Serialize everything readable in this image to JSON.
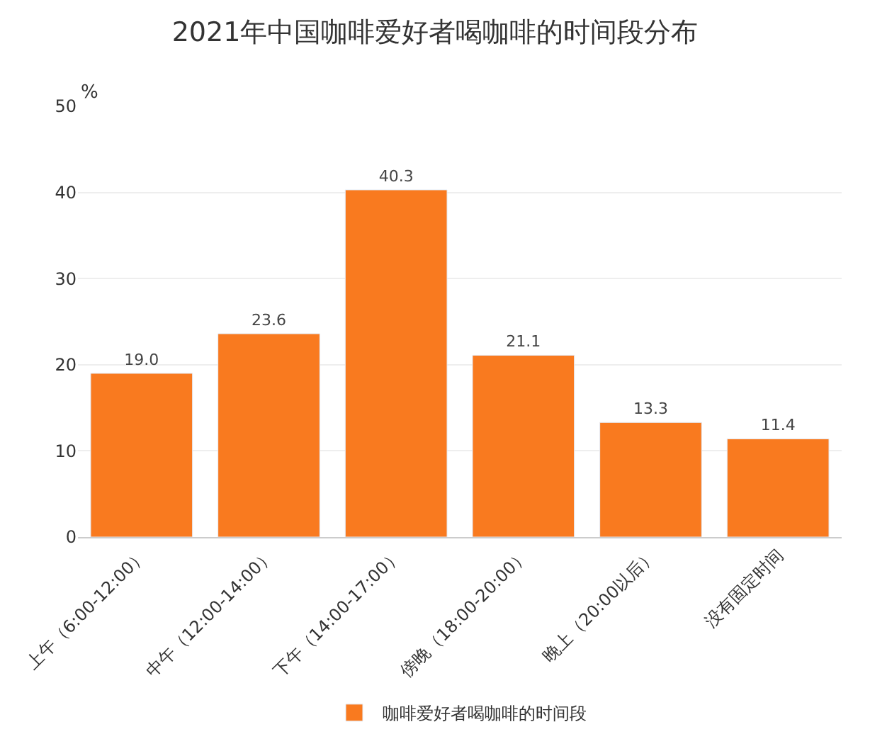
{
  "chart_data": {
    "type": "bar",
    "title": "2021年中国咖啡爱好者喝咖啡的时间段分布",
    "ylabel": "%",
    "categories": [
      "上午（6:00-12:00）",
      "中午（12:00-14:00）",
      "下午（14:00-17:00）",
      "傍晚（18:00-20:00）",
      "晚上（20:00以后）",
      "没有固定时间"
    ],
    "series": [
      {
        "name": "咖啡爱好者喝咖啡的时间段",
        "color": "#f97a1f",
        "values": [
          19.0,
          23.6,
          40.3,
          21.1,
          13.3,
          11.4
        ],
        "value_labels": [
          "19.0",
          "23.6",
          "40.3",
          "21.1",
          "13.3",
          "11.4"
        ]
      }
    ],
    "ylim": [
      0,
      50
    ],
    "yticks": [
      0,
      10,
      20,
      30,
      40,
      50
    ],
    "grid": "y",
    "legend": "bottom"
  }
}
